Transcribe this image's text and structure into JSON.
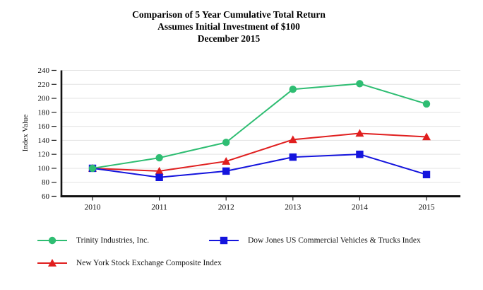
{
  "chart_data": {
    "type": "line",
    "title": "Comparison of 5 Year Cumulative Total Return — Assumes Initial Investment of $100 — December 2015",
    "title_lines": [
      "Comparison of 5 Year Cumulative Total Return",
      "Assumes Initial Investment of $100",
      "December 2015"
    ],
    "xlabel": "",
    "ylabel": "Index Value",
    "x_categories": [
      "2010",
      "2011",
      "2012",
      "2013",
      "2014",
      "2015"
    ],
    "y_ticks": [
      60,
      80,
      100,
      120,
      140,
      160,
      180,
      200,
      220,
      240
    ],
    "ylim": [
      60,
      240
    ],
    "grid": "horizontal",
    "legend_position": "bottom",
    "series": [
      {
        "name": "Trinity Industries, Inc.",
        "marker": "circle",
        "color": "#2ebd72",
        "values": [
          100,
          115,
          137,
          213,
          221,
          192
        ]
      },
      {
        "name": "Dow Jones US Commercial Vehicles & Trucks Index",
        "marker": "square",
        "color": "#1414dd",
        "values": [
          100,
          87,
          96,
          116,
          120,
          91
        ]
      },
      {
        "name": "New York Stock Exchange Composite Index",
        "marker": "triangle",
        "color": "#e01f1f",
        "values": [
          100,
          96,
          110,
          141,
          150,
          145
        ]
      }
    ]
  }
}
